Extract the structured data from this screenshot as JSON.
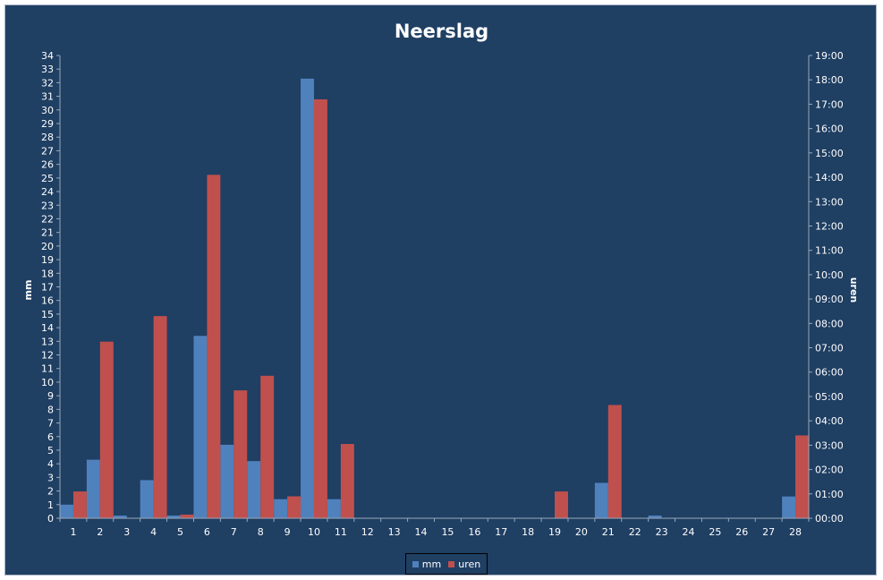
{
  "chart_data": {
    "type": "bar",
    "title": "Neerslag",
    "ylabel": "mm",
    "y2label": "uren",
    "ylim": [
      0,
      34
    ],
    "y2lim_hours": [
      0,
      19
    ],
    "categories": [
      "1",
      "2",
      "3",
      "4",
      "5",
      "6",
      "7",
      "8",
      "9",
      "10",
      "11",
      "12",
      "13",
      "14",
      "15",
      "16",
      "17",
      "18",
      "19",
      "20",
      "21",
      "22",
      "23",
      "24",
      "25",
      "26",
      "27",
      "28"
    ],
    "y_ticks": [
      "0",
      "1",
      "2",
      "3",
      "4",
      "5",
      "6",
      "7",
      "8",
      "9",
      "10",
      "11",
      "12",
      "13",
      "14",
      "15",
      "16",
      "17",
      "18",
      "19",
      "20",
      "21",
      "22",
      "23",
      "24",
      "25",
      "26",
      "27",
      "28",
      "29",
      "30",
      "31",
      "32",
      "33",
      "34"
    ],
    "y2_ticks": [
      "00:00",
      "01:00",
      "02:00",
      "03:00",
      "04:00",
      "05:00",
      "06:00",
      "07:00",
      "08:00",
      "09:00",
      "10:00",
      "11:00",
      "12:00",
      "13:00",
      "14:00",
      "15:00",
      "16:00",
      "17:00",
      "18:00",
      "19:00"
    ],
    "series": [
      {
        "name": "mm",
        "axis": "left",
        "color": "#4f81bd",
        "values": [
          1.0,
          4.3,
          0.2,
          2.8,
          0.2,
          13.4,
          5.4,
          4.2,
          1.4,
          32.3,
          1.4,
          0,
          0,
          0,
          0,
          0,
          0,
          0,
          0,
          0,
          2.6,
          0,
          0.2,
          0,
          0,
          0,
          0,
          1.6
        ]
      },
      {
        "name": "uren",
        "axis": "right",
        "color": "#c0504d",
        "values": [
          1.1,
          7.25,
          0,
          8.3,
          0.15,
          14.1,
          5.25,
          5.85,
          0.9,
          17.2,
          3.05,
          0,
          0,
          0,
          0,
          0,
          0,
          0,
          1.1,
          0,
          4.65,
          0,
          0,
          0,
          0,
          0,
          0,
          3.4
        ]
      }
    ],
    "legend_position": "bottom",
    "grid": false
  }
}
